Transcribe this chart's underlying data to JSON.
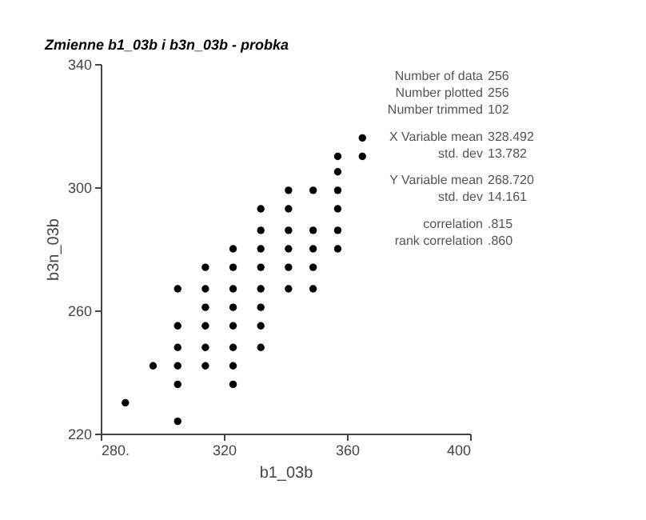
{
  "chart_data": {
    "type": "scatter",
    "title": "Zmienne b1_03b i b3n_03b - probka",
    "xlabel": "b1_03b",
    "ylabel": "b3n_03b",
    "x": [
      288,
      297,
      305,
      305,
      305,
      305,
      305,
      305,
      314,
      314,
      314,
      314,
      314,
      314,
      323,
      323,
      323,
      323,
      323,
      323,
      323,
      323,
      332,
      332,
      332,
      332,
      332,
      332,
      332,
      332,
      341,
      341,
      341,
      341,
      341,
      341,
      349,
      349,
      349,
      349,
      349,
      357,
      357,
      357,
      357,
      357,
      357,
      365,
      365
    ],
    "series": [
      {
        "color": "#000000",
        "values": [
          230,
          242,
          267,
          255,
          248,
          242,
          236,
          224,
          274,
          267,
          261,
          255,
          248,
          242,
          280,
          274,
          267,
          261,
          255,
          248,
          242,
          236,
          293,
          286,
          280,
          274,
          267,
          261,
          255,
          248,
          299,
          293,
          286,
          280,
          274,
          267,
          299,
          286,
          280,
          274,
          267,
          310,
          305,
          299,
          293,
          286,
          280,
          316,
          310
        ]
      }
    ],
    "xlim": [
      280,
      400
    ],
    "xticks": [
      {
        "value": 280,
        "label": "280."
      },
      320,
      360,
      400
    ],
    "ylim": [
      220,
      340
    ],
    "yticks": [
      220,
      260,
      300,
      340
    ],
    "grid": false,
    "marker": "circle",
    "annotations": [
      "Number of data 256",
      "Number plotted 256",
      "Number trimmed 102",
      "X Variable mean 328.492",
      "std. dev 13.782",
      "Y Variable mean 268.720",
      "std. dev 14.161",
      "correlation .815",
      "rank correlation .860"
    ]
  }
}
